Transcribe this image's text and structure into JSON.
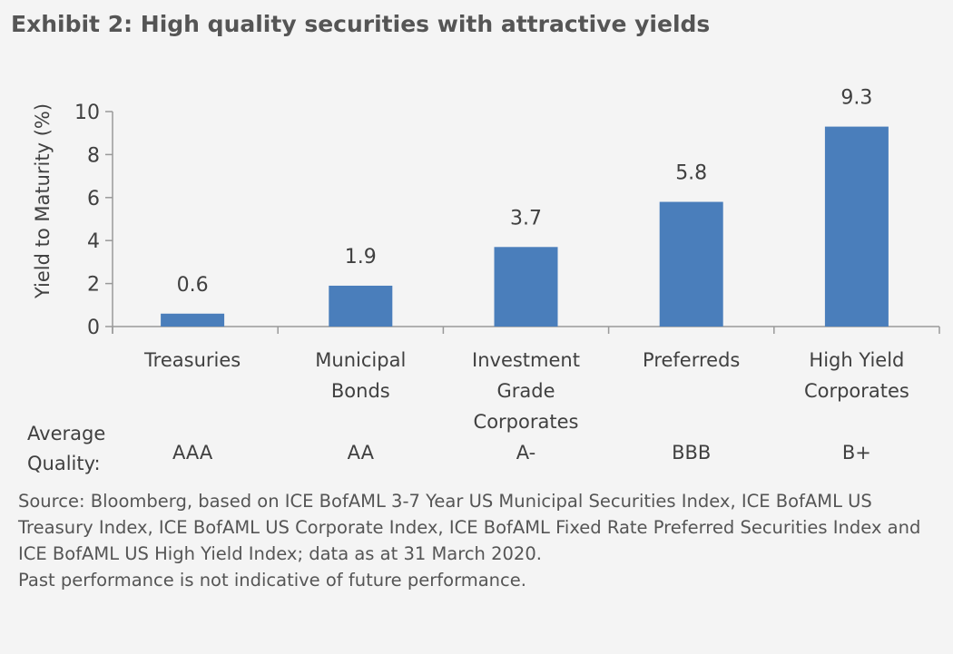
{
  "title": "Exhibit 2: High quality securities with attractive yields",
  "chart_data": {
    "type": "bar",
    "categories": [
      [
        "Treasuries"
      ],
      [
        "Municipal",
        "Bonds"
      ],
      [
        "Investment",
        "Grade",
        "Corporates"
      ],
      [
        "Preferreds"
      ],
      [
        "High Yield",
        "Corporates"
      ]
    ],
    "values": [
      0.6,
      1.9,
      3.7,
      5.8,
      9.3
    ],
    "data_labels": [
      "0.6",
      "1.9",
      "3.7",
      "5.8",
      "9.3"
    ],
    "ylabel": "Yield to Maturity (%)",
    "xlabel": "",
    "ylim": [
      0,
      10
    ],
    "yticks": [
      0,
      2,
      4,
      6,
      8,
      10
    ],
    "grid": false,
    "bar_color": "#4a7ebb",
    "quality_label": [
      "Average",
      "Quality:"
    ],
    "quality": [
      "AAA",
      "AA",
      "A-",
      "BBB",
      "B+"
    ]
  },
  "source": "Source: Bloomberg, based on ICE BofAML 3-7 Year US Municipal Securities Index, ICE BofAML US Treasury Index, ICE BofAML US Corporate Index, ICE BofAML Fixed Rate Preferred Securities Index and ICE BofAML US High Yield Index; data as at 31 March 2020.",
  "disclaimer": "Past performance is not indicative of future performance."
}
